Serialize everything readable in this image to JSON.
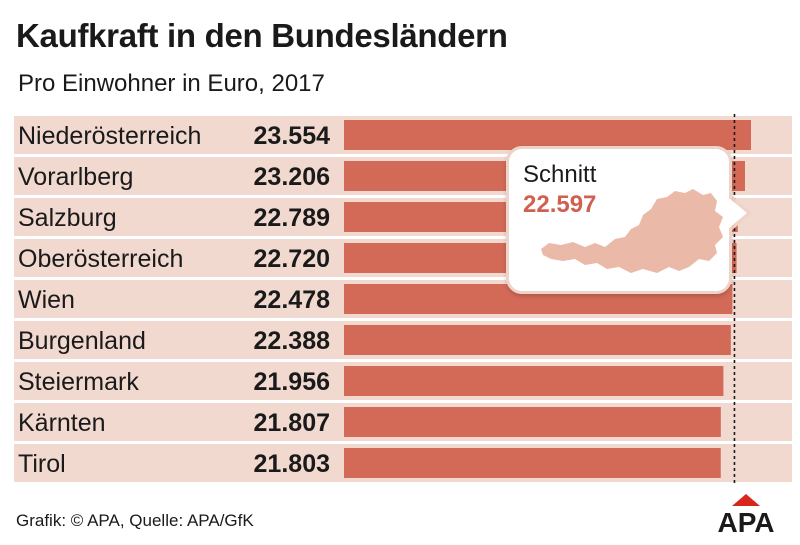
{
  "colors": {
    "stripe": "#f1d9d0",
    "bar": "#d36a58",
    "avg_value": "#d0604f",
    "map": "#ebb9a8",
    "logo_red": "#d8261c"
  },
  "header": {
    "title": "Kaufkraft in den Bundesländern",
    "subtitle": "Pro Einwohner in Euro, 2017"
  },
  "chart_data": {
    "type": "bar",
    "orientation": "horizontal",
    "title": "Kaufkraft in den Bundesländern",
    "subtitle": "Pro Einwohner in Euro, 2017",
    "categories": [
      "Niederösterreich",
      "Vorarlberg",
      "Salzburg",
      "Oberösterreich",
      "Wien",
      "Burgenland",
      "Steiermark",
      "Kärnten",
      "Tirol"
    ],
    "values": [
      23554,
      23206,
      22789,
      22720,
      22478,
      22388,
      21956,
      21807,
      21803
    ],
    "value_labels": [
      "23.554",
      "23.206",
      "22.789",
      "22.720",
      "22.478",
      "22.388",
      "21.956",
      "21.807",
      "21.803"
    ],
    "unit": "Euro",
    "average": 22597,
    "average_label": "Schnitt",
    "average_value_label": "22.597",
    "xlim": [
      0,
      23600
    ],
    "grid": false,
    "legend": "none"
  },
  "footer": {
    "credit": "Grafik: © APA, Quelle: APA/GfK",
    "logo_text": "APA"
  }
}
